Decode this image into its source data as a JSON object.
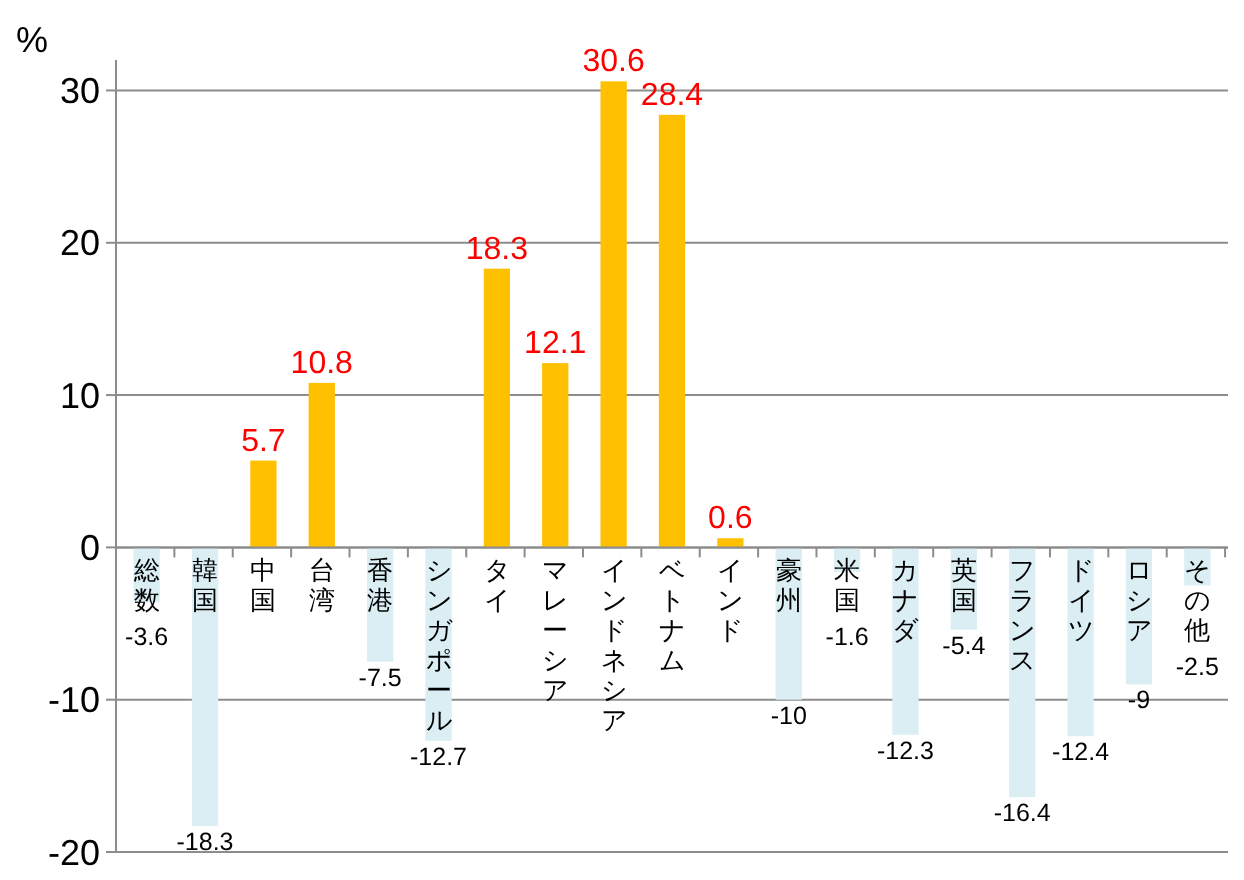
{
  "chart_data": {
    "type": "bar",
    "ylabel": "%",
    "categories": [
      "総数",
      "韓国",
      "中国",
      "台湾",
      "香港",
      "シンガポール",
      "タイ",
      "マレーシア",
      "インドネシア",
      "ベトナム",
      "インド",
      "豪州",
      "米国",
      "カナダ",
      "英国",
      "フランス",
      "ドイツ",
      "ロシア",
      "その他"
    ],
    "values": [
      -3.6,
      -18.3,
      5.7,
      10.8,
      -7.5,
      -12.7,
      18.3,
      12.1,
      30.6,
      28.4,
      0.6,
      -10,
      -1.6,
      -12.3,
      -5.4,
      -16.4,
      -12.4,
      -9,
      -2.5
    ],
    "colors": [
      "#daeef3",
      "#daeef3",
      "#ffc000",
      "#ffc000",
      "#daeef3",
      "#daeef3",
      "#ffc000",
      "#ffc000",
      "#ffc000",
      "#ffc000",
      "#ffc000",
      "#daeef3",
      "#daeef3",
      "#daeef3",
      "#daeef3",
      "#daeef3",
      "#daeef3",
      "#daeef3",
      "#daeef3"
    ],
    "ylim": [
      -20,
      32
    ],
    "yticks": [
      -20,
      -10,
      0,
      10,
      20,
      30
    ],
    "grid": "y",
    "data_labels": true
  }
}
